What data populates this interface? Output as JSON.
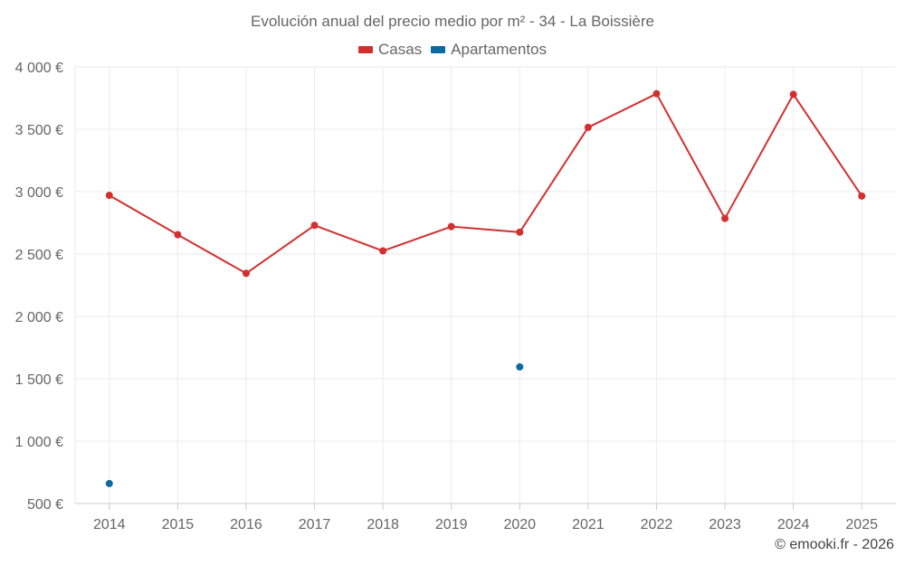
{
  "chart_data": {
    "type": "line",
    "title": "Evolución anual del precio medio por m² - 34 - La Boissière",
    "xlabel": "",
    "ylabel": "",
    "categories": [
      "2014",
      "2015",
      "2016",
      "2017",
      "2018",
      "2019",
      "2020",
      "2021",
      "2022",
      "2023",
      "2024",
      "2025"
    ],
    "ylim": [
      500,
      4000
    ],
    "yticks": [
      500,
      1000,
      1500,
      2000,
      2500,
      3000,
      3500,
      4000
    ],
    "ytick_labels": [
      "500 €",
      "1 000 €",
      "1 500 €",
      "2 000 €",
      "2 500 €",
      "3 000 €",
      "3 500 €",
      "4 000 €"
    ],
    "grid": true,
    "legend_position": "top-center",
    "series": [
      {
        "name": "Casas",
        "color": "#d32f2f",
        "style": "line",
        "values": [
          2970,
          2655,
          2345,
          2730,
          2525,
          2720,
          2675,
          3515,
          3785,
          2785,
          3780,
          2965
        ]
      },
      {
        "name": "Apartamentos",
        "color": "#0d6aa0",
        "style": "points",
        "values": [
          660,
          null,
          null,
          null,
          null,
          null,
          1595,
          null,
          null,
          null,
          null,
          null
        ]
      }
    ]
  },
  "footer": {
    "credit": "© emooki.fr - 2026"
  }
}
